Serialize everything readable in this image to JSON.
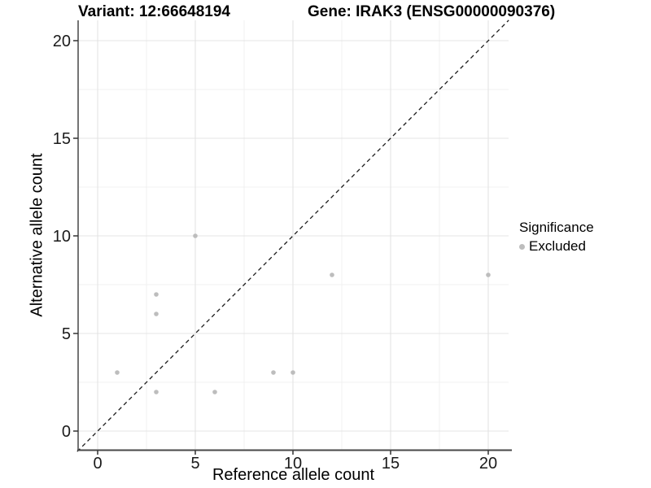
{
  "title_left": "Variant: 12:66648194",
  "title_right": "Gene: IRAK3 (ENSG00000090376)",
  "chart_data": {
    "type": "scatter",
    "title": "Variant: 12:66648194 / Gene: IRAK3 (ENSG00000090376)",
    "xlabel": "Reference allele count",
    "ylabel": "Alternative allele count",
    "x_ticks": [
      0,
      5,
      10,
      15,
      20
    ],
    "y_ticks": [
      0,
      5,
      10,
      15,
      20
    ],
    "xlim": [
      -1.05,
      21.05
    ],
    "ylim": [
      -1.05,
      21.05
    ],
    "grid": true,
    "identity_line": {
      "style": "dashed",
      "slope": 1,
      "intercept": 0,
      "color": "#1a1a1a"
    },
    "series": [
      {
        "name": "Excluded",
        "color": "#bdbdbd",
        "points": [
          [
            1,
            3
          ],
          [
            3,
            2
          ],
          [
            3,
            6
          ],
          [
            3,
            7
          ],
          [
            5,
            10
          ],
          [
            6,
            2
          ],
          [
            9,
            3
          ],
          [
            10,
            3
          ],
          [
            12,
            8
          ],
          [
            20,
            8
          ]
        ]
      }
    ],
    "legend": {
      "title": "Significance",
      "position": "right",
      "items": [
        {
          "label": "Excluded",
          "color": "#bdbdbd"
        }
      ]
    }
  },
  "colors": {
    "background": "#ffffff",
    "major_grid": "#e4e4e4",
    "minor_grid": "#f0f0f0",
    "axis_line": "#474747",
    "tick_mark": "#333333",
    "tick_label": "#262626",
    "point": "#bdbdbd"
  }
}
